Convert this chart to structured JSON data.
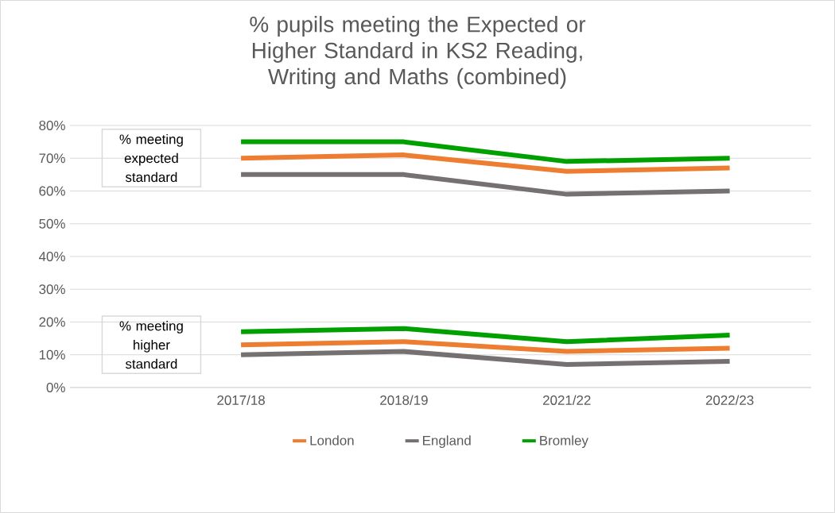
{
  "chart_data": {
    "type": "line",
    "title": "% pupils meeting the Expected or Higher Standard in KS2 Reading, Writing and Maths (combined)",
    "categories": [
      "2017/18",
      "2018/19",
      "2021/22",
      "2022/23"
    ],
    "series": [
      {
        "name": "London",
        "color": "#ed7d31",
        "values": [
          70,
          71,
          66,
          67
        ]
      },
      {
        "name": "England",
        "color": "#767171",
        "values": [
          65,
          65,
          59,
          60
        ]
      },
      {
        "name": "Bromley",
        "color": "#00a000",
        "values": [
          75,
          75,
          69,
          70
        ]
      },
      {
        "color": "#ed7d31",
        "values": [
          13,
          14,
          11,
          12
        ]
      },
      {
        "color": "#767171",
        "values": [
          10,
          11,
          7,
          8
        ]
      },
      {
        "color": "#00a000",
        "values": [
          17,
          18,
          14,
          16
        ]
      }
    ],
    "annotations": [
      "% meeting expected standard",
      "% meeting higher standard"
    ],
    "ylim": [
      0,
      80
    ],
    "yticks": [
      {
        "value": 0,
        "label": "0%"
      },
      {
        "value": 10,
        "label": "10%"
      },
      {
        "value": 20,
        "label": "20%"
      },
      {
        "value": 30,
        "label": "30%"
      },
      {
        "value": 40,
        "label": "40%"
      },
      {
        "value": 50,
        "label": "50%"
      },
      {
        "value": 60,
        "label": "60%"
      },
      {
        "value": 70,
        "label": "70%"
      },
      {
        "value": 80,
        "label": "80%"
      }
    ],
    "grid": "y",
    "legend": "bottom",
    "marker": "none",
    "line_style": "solid"
  }
}
